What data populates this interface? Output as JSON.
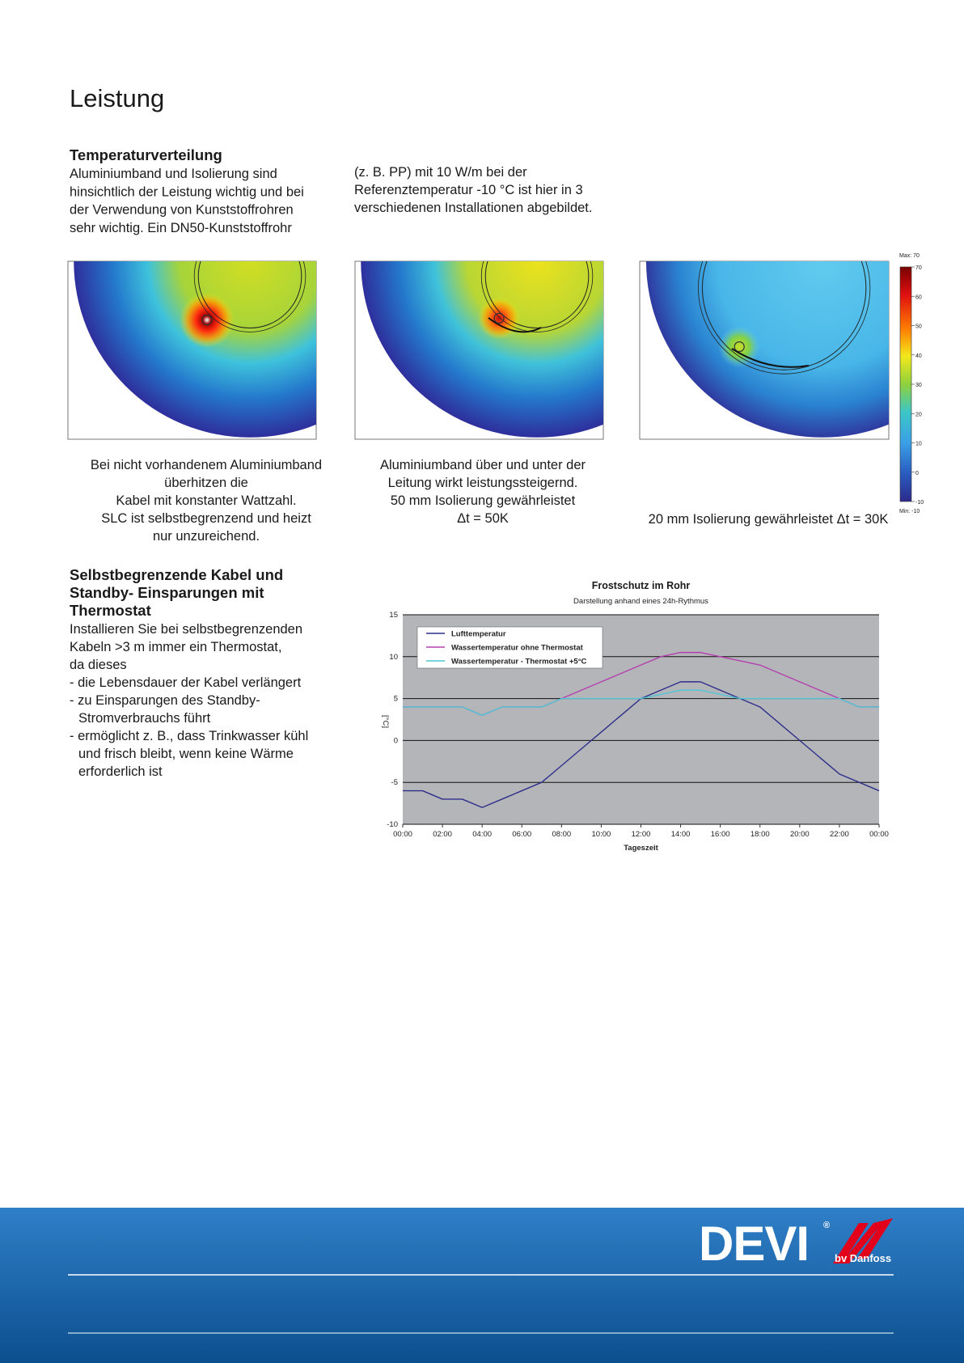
{
  "title": "Leistung",
  "section1": {
    "heading": "Temperaturverteilung",
    "left_lines": [
      "Aluminiumband und Isolierung sind",
      "hinsichtlich der Leistung wichtig und bei",
      "der Verwendung von Kunststoffrohren",
      "sehr wichtig. Ein DN50-Kunststoffrohr"
    ],
    "right_lines": [
      "(z. B. PP) mit 10 W/m bei der",
      "Referenztemperatur -10 °C ist hier in 3",
      "verschiedenen Installationen abgebildet."
    ]
  },
  "colorbar": {
    "max_label": "Max: 70",
    "min_label": "Min: -10",
    "lim": [
      -10,
      70
    ],
    "ticks": [
      70,
      60,
      50,
      40,
      30,
      20,
      10,
      0,
      -10
    ]
  },
  "captions": [
    [
      "Bei nicht vorhandenem Aluminiumband",
      "überhitzen die",
      "Kabel mit konstanter Wattzahl.",
      "SLC ist selbstbegrenzend und heizt",
      "nur unzureichend."
    ],
    [
      "Aluminiumband über und unter der",
      "Leitung wirkt leistungssteigernd.",
      "50 mm Isolierung gewährleistet",
      "Δt = 50K"
    ],
    [
      "20 mm Isolierung gewährleistet Δt = 30K"
    ]
  ],
  "section2": {
    "heading_lines": [
      "Selbstbegrenzende Kabel und",
      "Standby- Einsparungen mit",
      "Thermostat"
    ],
    "intro_lines": [
      "Installieren Sie bei selbstbegrenzenden",
      "Kabeln >3 m immer ein Thermostat,",
      "da dieses"
    ],
    "items": [
      [
        "- die Lebensdauer der Kabel verlängert"
      ],
      [
        "- zu Einsparungen des Standby-",
        "Stromverbrauchs führt"
      ],
      [
        "- ermöglicht z. B., dass Trinkwasser kühl",
        "und frisch bleibt, wenn keine Wärme",
        "erforderlich ist"
      ]
    ]
  },
  "chart_data": {
    "type": "line",
    "title": "Frostschutz im Rohr",
    "subtitle": "Darstellung anhand eines 24h-Rythmus",
    "x_label": "Tageszeit",
    "y_label": "[°C]",
    "x": [
      0,
      1,
      2,
      3,
      4,
      5,
      6,
      7,
      8,
      9,
      10,
      11,
      12,
      13,
      14,
      15,
      16,
      17,
      18,
      19,
      20,
      21,
      22,
      23,
      24
    ],
    "xlim": [
      0,
      24
    ],
    "xticks": [
      {
        "value": 0,
        "label": "00:00"
      },
      {
        "value": 2,
        "label": "02:00"
      },
      {
        "value": 4,
        "label": "04:00"
      },
      {
        "value": 6,
        "label": "06:00"
      },
      {
        "value": 8,
        "label": "08:00"
      },
      {
        "value": 10,
        "label": "10:00"
      },
      {
        "value": 12,
        "label": "12:00"
      },
      {
        "value": 14,
        "label": "14:00"
      },
      {
        "value": 16,
        "label": "16:00"
      },
      {
        "value": 18,
        "label": "18:00"
      },
      {
        "value": 20,
        "label": "20:00"
      },
      {
        "value": 22,
        "label": "22:00"
      },
      {
        "value": 24,
        "label": "00:00"
      }
    ],
    "ylim": [
      -10,
      15
    ],
    "yticks": [
      -10,
      -5,
      0,
      5,
      10,
      15
    ],
    "grid": true,
    "legend": "top-left",
    "series": [
      {
        "name": "Lufttemperatur",
        "color": "#2e2f8a",
        "values": [
          -6,
          -6,
          -7,
          -7,
          -8,
          -7,
          -6,
          -5,
          -3,
          -1,
          1,
          3,
          5,
          6,
          7,
          7,
          6,
          5,
          4,
          2,
          0,
          -2,
          -4,
          -5,
          -6
        ]
      },
      {
        "name": "Wassertemperatur ohne Thermostat",
        "color": "#b43fae",
        "values": [
          4,
          4,
          4,
          4,
          3,
          4,
          4,
          4,
          5,
          6,
          7,
          8,
          9,
          10,
          10.5,
          10.5,
          10,
          9.5,
          9,
          8,
          7,
          6,
          5,
          4,
          4
        ]
      },
      {
        "name": "Wassertemperatur - Thermostat +5°C",
        "color": "#4ec6d6",
        "values": [
          4,
          4,
          4,
          4,
          3,
          4,
          4,
          4,
          5,
          5,
          5,
          5,
          5,
          5.5,
          6,
          6,
          5.5,
          5,
          5,
          5,
          5,
          5,
          5,
          4,
          4
        ]
      }
    ]
  },
  "footer": {
    "brand": "DEVI",
    "registered": "®",
    "sub": "bv Danfoss"
  }
}
